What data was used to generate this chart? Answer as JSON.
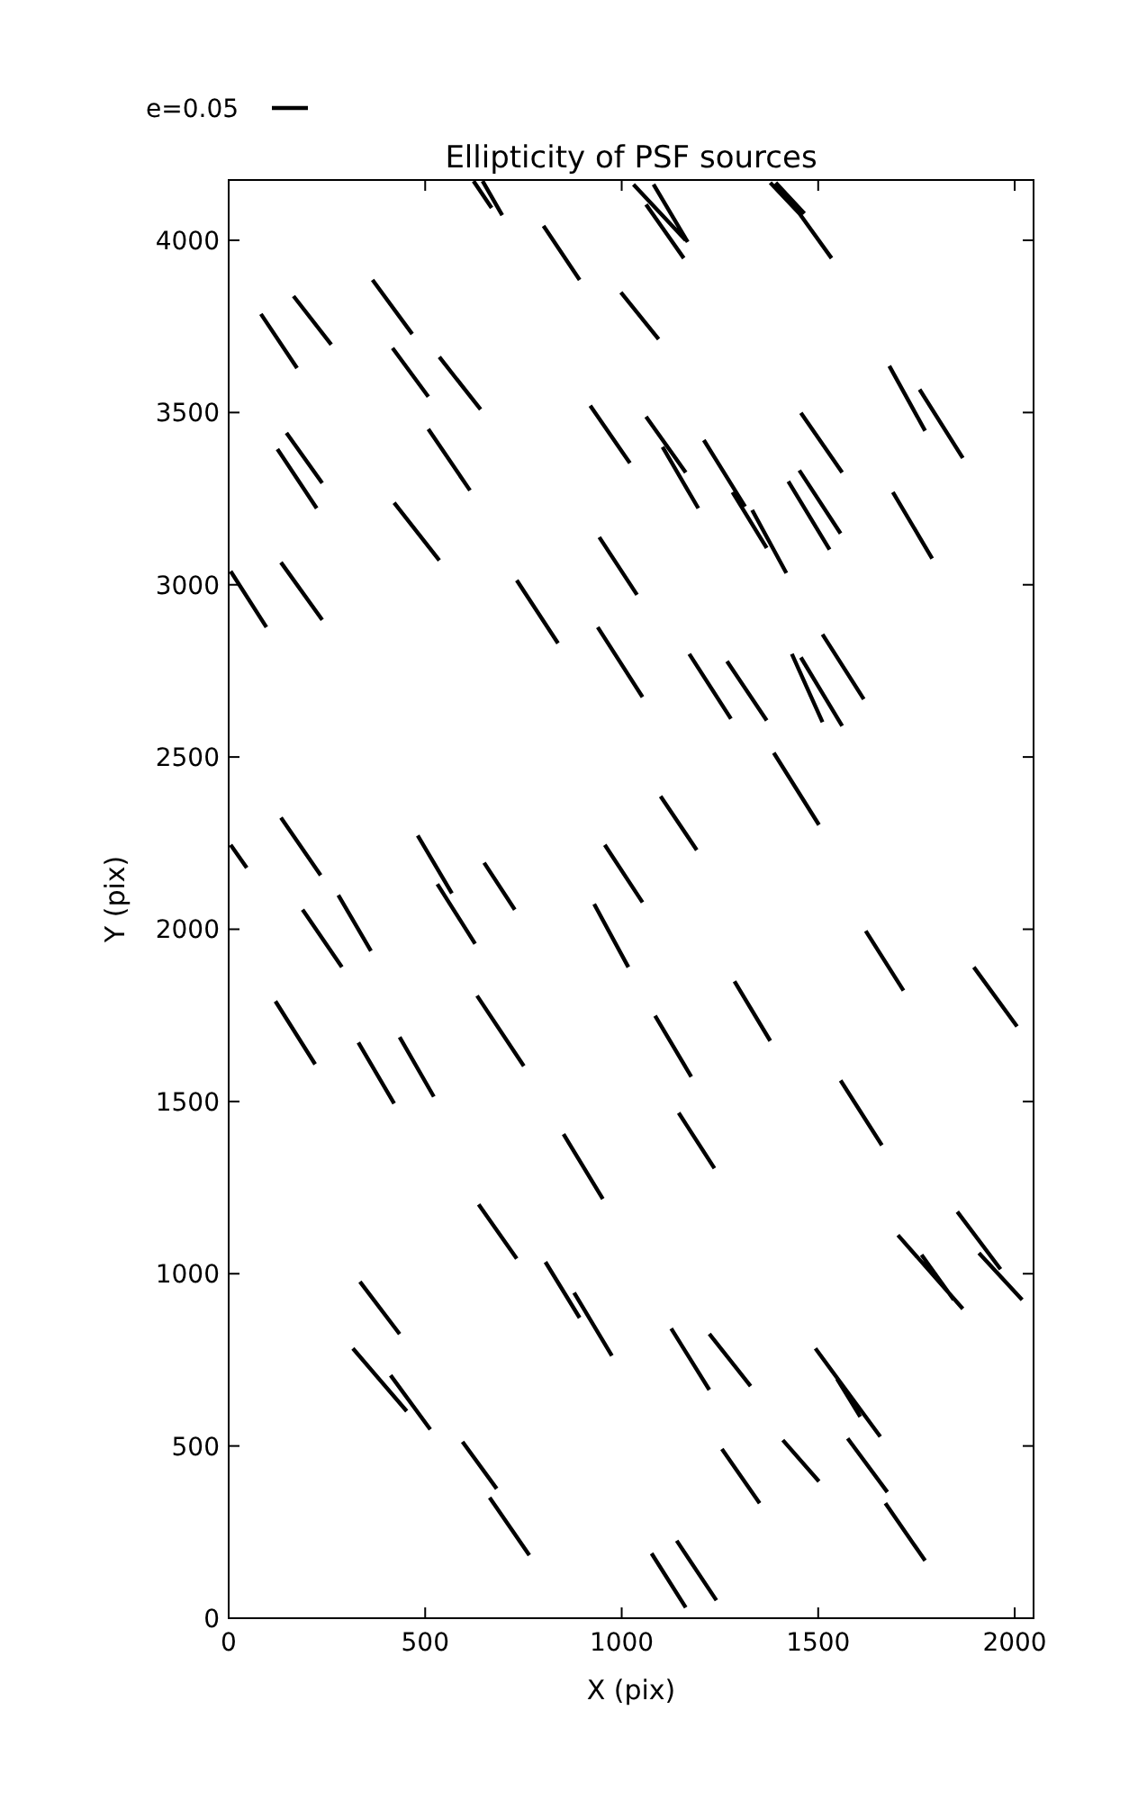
{
  "chart_data": {
    "type": "line",
    "title": "Ellipticity of PSF sources",
    "xlabel": "X (pix)",
    "ylabel": "Y (pix)",
    "xlim": [
      0,
      2048
    ],
    "ylim": [
      0,
      4175
    ],
    "xticks": [
      0,
      500,
      1000,
      1500,
      2000
    ],
    "yticks": [
      0,
      500,
      1000,
      1500,
      2000,
      2500,
      3000,
      3500,
      4000
    ],
    "legend": "top left",
    "grid": false,
    "marker": "none",
    "line_style": "solid",
    "series": [
      {
        "name": "e=0.05",
        "color": "#000000",
        "x": [
          623,
          669,
          null,
          646,
          696,
          null,
          801,
          893,
          null,
          366,
          467,
          null,
          165,
          261,
          null,
          82,
          174,
          null,
          417,
          508,
          null,
          536,
          641,
          null,
          920,
          1021,
          null,
          147,
          238,
          null,
          124,
          224,
          null,
          508,
          614,
          null,
          421,
          536,
          null,
          5,
          96,
          null,
          133,
          238,
          null,
          733,
          838,
          null,
          943,
          1039,
          null,
          939,
          1053,
          null,
          1030,
          1163,
          null,
          1081,
          1168,
          null,
          1062,
          1158,
          null,
          1378,
          1456,
          null,
          1392,
          1465,
          null,
          1442,
          1534,
          null,
          998,
          1094,
          null,
          1681,
          1772,
          null,
          1758,
          1868,
          null,
          1456,
          1561,
          null,
          1062,
          1163,
          null,
          1104,
          1195,
          null,
          1209,
          1314,
          null,
          1282,
          1369,
          null,
          1332,
          1419,
          null,
          1424,
          1529,
          null,
          1452,
          1557,
          null,
          1690,
          1790,
          null,
          1172,
          1278,
          null,
          1268,
          1369,
          null,
          1433,
          1511,
          null,
          1511,
          1616,
          null,
          1387,
          1502,
          null,
          1099,
          1191,
          null,
          957,
          1053,
          null,
          930,
          1017,
          null,
          1621,
          1717,
          null,
          1896,
          2006,
          null,
          1287,
          1378,
          null,
          1085,
          1177,
          null,
          1557,
          1662,
          null,
          1145,
          1236,
          null,
          5,
          46,
          null,
          133,
          234,
          null,
          481,
          568,
          null,
          531,
          627,
          null,
          650,
          728,
          null,
          188,
          288,
          null,
          279,
          362,
          null,
          119,
          220,
          null,
          330,
          421,
          null,
          435,
          522,
          null,
          632,
          751,
          null,
          852,
          952,
          null,
          636,
          733,
          null,
          806,
          893,
          null,
          879,
          975,
          null,
          334,
          435,
          null,
          316,
          453,
          null,
          412,
          513,
          null,
          595,
          682,
          null,
          664,
          765,
          null,
          1703,
          1868,
          null,
          1763,
          1845,
          null,
          1854,
          1964,
          null,
          1909,
          2019,
          null,
          1126,
          1223,
          null,
          1223,
          1328,
          null,
          1493,
          1658,
          null,
          1548,
          1607,
          null,
          1255,
          1351,
          null,
          1410,
          1502,
          null,
          1575,
          1676,
          null,
          1671,
          1772,
          null,
          1076,
          1163,
          null,
          1140,
          1241
        ],
        "values": [
          4172,
          4094,
          null,
          4172,
          4073,
          null,
          4042,
          3885,
          null,
          3885,
          3728,
          null,
          3838,
          3697,
          null,
          3786,
          3629,
          null,
          3687,
          3546,
          null,
          3661,
          3509,
          null,
          3520,
          3353,
          null,
          3441,
          3295,
          null,
          3394,
          3222,
          null,
          3452,
          3274,
          null,
          3238,
          3071,
          null,
          3039,
          2877,
          null,
          3065,
          2898,
          null,
          3013,
          2830,
          null,
          3138,
          2971,
          null,
          2877,
          2674,
          null,
          4162,
          4000,
          null,
          4162,
          3995,
          null,
          4104,
          3948,
          null,
          4167,
          4073,
          null,
          4167,
          4078,
          null,
          4094,
          3948,
          null,
          3849,
          3713,
          null,
          3635,
          3447,
          null,
          3567,
          3368,
          null,
          3499,
          3326,
          null,
          3488,
          3326,
          null,
          3400,
          3222,
          null,
          3420,
          3227,
          null,
          3269,
          3107,
          null,
          3217,
          3034,
          null,
          3300,
          3102,
          null,
          3332,
          3149,
          null,
          3269,
          3076,
          null,
          2799,
          2611,
          null,
          2778,
          2606,
          null,
          2799,
          2601,
          null,
          2856,
          2668,
          null,
          2512,
          2303,
          null,
          2386,
          2230,
          null,
          2245,
          2078,
          null,
          2073,
          1890,
          null,
          1995,
          1822,
          null,
          1890,
          1718,
          null,
          1849,
          1676,
          null,
          1749,
          1572,
          null,
          1561,
          1373,
          null,
          1467,
          1306,
          null,
          2245,
          2178,
          null,
          2324,
          2157,
          null,
          2272,
          2104,
          null,
          2131,
          1958,
          null,
          2193,
          2057,
          null,
          2057,
          1890,
          null,
          2099,
          1937,
          null,
          1791,
          1608,
          null,
          1671,
          1494,
          null,
          1687,
          1514,
          null,
          1807,
          1603,
          null,
          1405,
          1217,
          null,
          1201,
          1044,
          null,
          1034,
          872,
          null,
          945,
          762,
          null,
          977,
          825,
          null,
          783,
          601,
          null,
          705,
          548,
          null,
          512,
          376,
          null,
          350,
          183,
          null,
          1112,
          898,
          null,
          1055,
          924,
          null,
          1180,
          1013,
          null,
          1060,
          924,
          null,
          841,
          663,
          null,
          825,
          674,
          null,
          783,
          527,
          null,
          695,
          585,
          null,
          491,
          334,
          null,
          517,
          397,
          null,
          522,
          366,
          null,
          334,
          167,
          null,
          188,
          31,
          null,
          225,
          52
        ]
      },
      {
        "color": "#000000",
        "x": [
          1456,
          1561
        ],
        "values": [
          2789,
          2590
        ]
      }
    ]
  }
}
